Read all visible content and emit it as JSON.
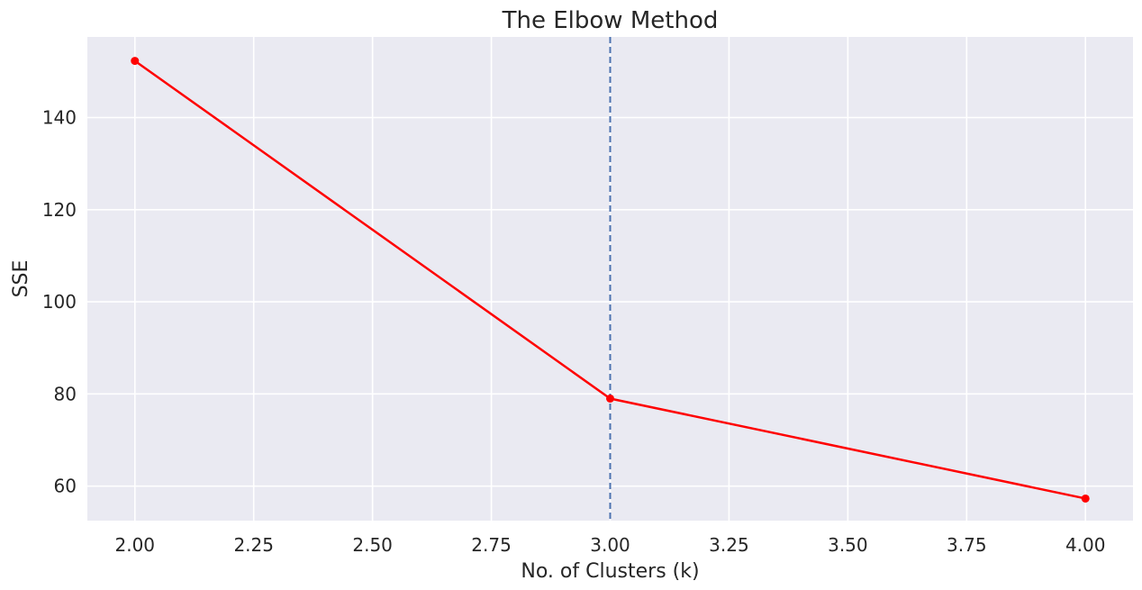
{
  "chart_data": {
    "type": "line",
    "title": "The Elbow Method",
    "xlabel": "No. of Clusters (k)",
    "ylabel": "SSE",
    "xlim": [
      1.9,
      4.1
    ],
    "ylim": [
      52.5,
      157.5
    ],
    "xticks": [
      2.0,
      2.25,
      2.5,
      2.75,
      3.0,
      3.25,
      3.5,
      3.75,
      4.0
    ],
    "xtick_labels": [
      "2.00",
      "2.25",
      "2.50",
      "2.75",
      "3.00",
      "3.25",
      "3.50",
      "3.75",
      "4.00"
    ],
    "yticks": [
      60,
      80,
      100,
      120,
      140
    ],
    "ytick_labels": [
      "60",
      "80",
      "100",
      "120",
      "140"
    ],
    "grid": true,
    "series": [
      {
        "x": [
          2,
          3,
          4
        ],
        "y": [
          152.3,
          79.0,
          57.3
        ],
        "color": "#ff0000",
        "marker": "circle"
      }
    ],
    "vline": {
      "x": 3,
      "color": "#4c72b0",
      "style": "dashed"
    },
    "background_color": "#eaeaf2",
    "grid_color": "#ffffff"
  }
}
